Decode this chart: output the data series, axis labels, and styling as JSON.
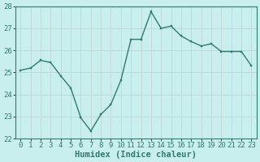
{
  "x": [
    0,
    1,
    2,
    3,
    4,
    5,
    6,
    7,
    8,
    9,
    10,
    11,
    12,
    13,
    14,
    15,
    16,
    17,
    18,
    19,
    20,
    21,
    22,
    23
  ],
  "y": [
    25.1,
    25.2,
    25.55,
    25.45,
    24.85,
    24.3,
    22.95,
    22.35,
    23.1,
    23.55,
    24.65,
    26.5,
    26.5,
    27.75,
    27.0,
    27.1,
    26.65,
    26.4,
    26.2,
    26.3,
    25.95,
    25.95,
    25.95,
    25.3
  ],
  "line_color": "#2e7d6e",
  "marker": "s",
  "marker_size": 2.0,
  "bg_color": "#c8eeee",
  "grid_color": "#c0d8d8",
  "xlabel": "Humidex (Indice chaleur)",
  "ylim": [
    22,
    28
  ],
  "xlim": [
    -0.5,
    23.5
  ],
  "yticks": [
    22,
    23,
    24,
    25,
    26,
    27,
    28
  ],
  "xticks": [
    0,
    1,
    2,
    3,
    4,
    5,
    6,
    7,
    8,
    9,
    10,
    11,
    12,
    13,
    14,
    15,
    16,
    17,
    18,
    19,
    20,
    21,
    22,
    23
  ],
  "xlabel_fontsize": 7.5,
  "tick_fontsize": 6.5,
  "line_width": 1.0
}
